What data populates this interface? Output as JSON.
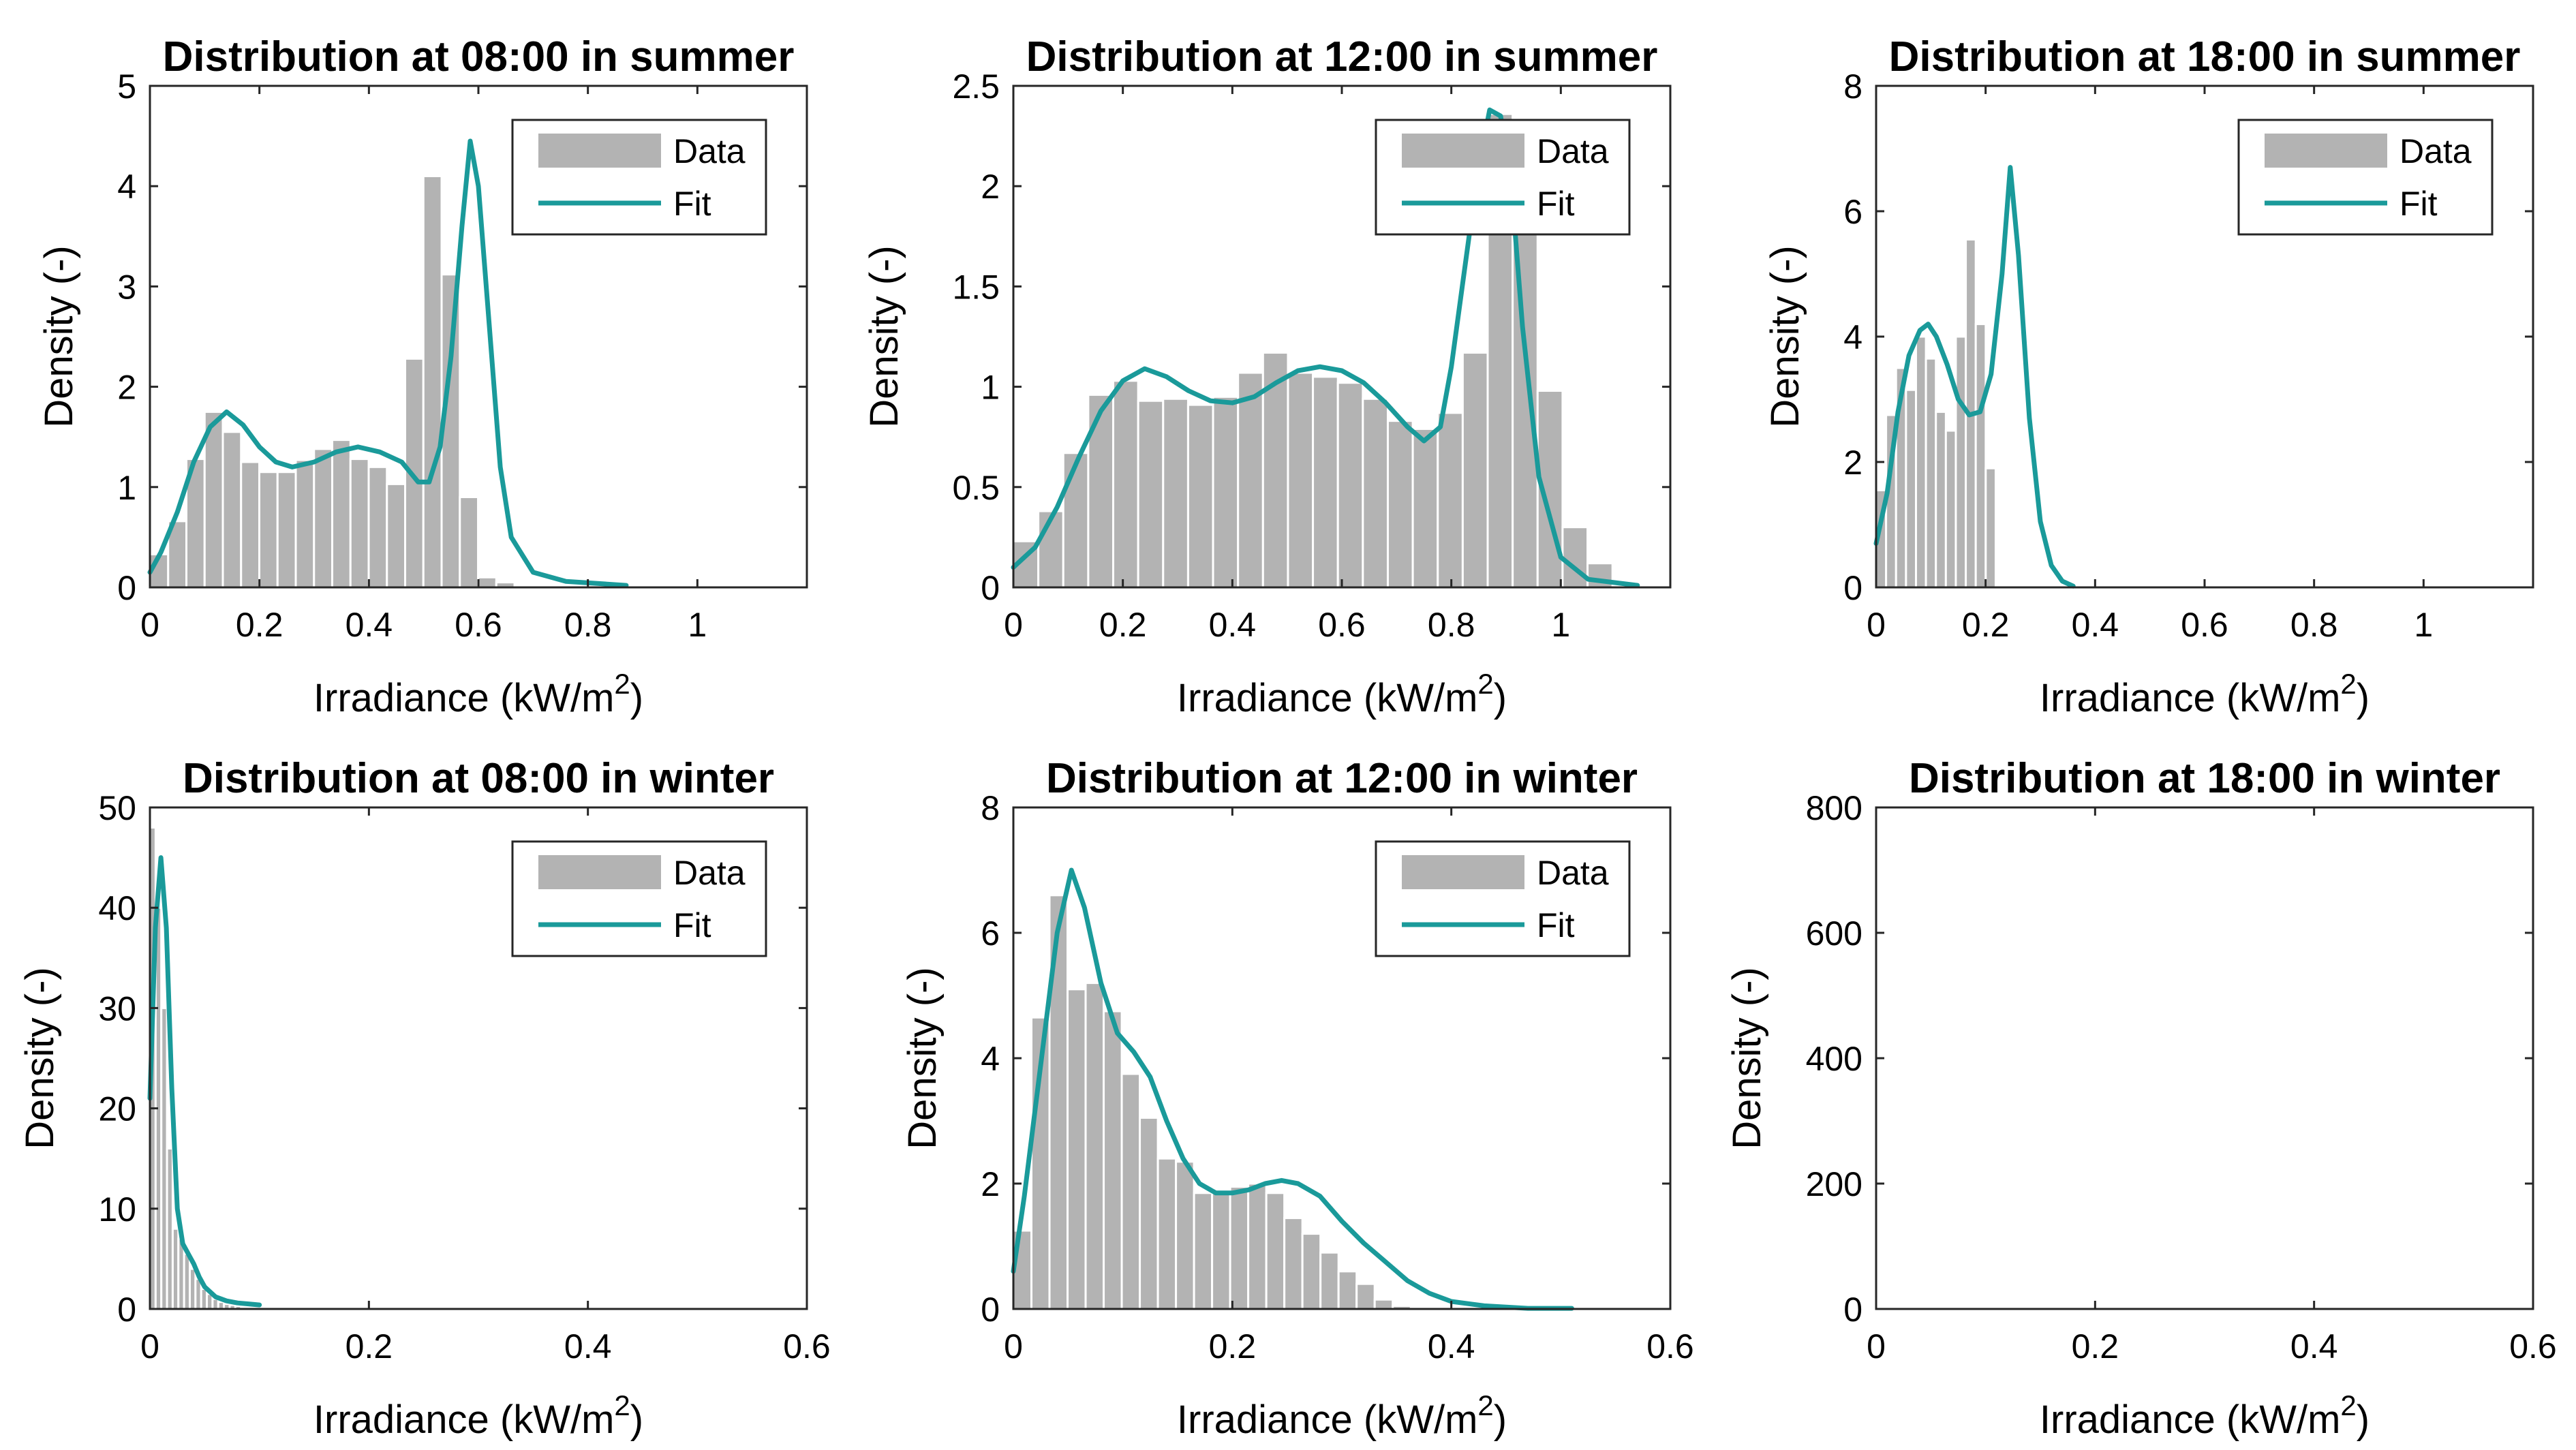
{
  "colors": {
    "bar": "#b3b3b3",
    "fit": "#1a9a9a",
    "axis": "#262626"
  },
  "legend": {
    "data_label": "Data",
    "fit_label": "Fit"
  },
  "chart_data": [
    {
      "type": "bar",
      "title": "Distribution at 08:00 in summer",
      "xlabel": "Irradiance (kW/m",
      "xlabel_sup": "2",
      "xlabel_close": ")",
      "ylabel": "Density (-)",
      "xlim": [
        0,
        1.2
      ],
      "ylim": [
        0,
        5
      ],
      "xticks": [
        0,
        0.2,
        0.4,
        0.6,
        0.8,
        1
      ],
      "xtick_labels": [
        "0",
        "0.2",
        "0.4",
        "0.6",
        "0.8",
        "1"
      ],
      "yticks": [
        0,
        1,
        2,
        3,
        4,
        5
      ],
      "ytick_labels": [
        "0",
        "1",
        "2",
        "3",
        "4",
        "5"
      ],
      "legend": true,
      "bin_start": 0,
      "bin_width": 0.0333,
      "bars": [
        0.33,
        0.66,
        1.28,
        1.75,
        1.55,
        1.25,
        1.15,
        1.15,
        1.27,
        1.38,
        1.47,
        1.28,
        1.2,
        1.03,
        2.28,
        4.1,
        3.12,
        0.9,
        0.1,
        0.05
      ],
      "fit": [
        [
          0,
          0.15
        ],
        [
          0.02,
          0.35
        ],
        [
          0.05,
          0.75
        ],
        [
          0.08,
          1.25
        ],
        [
          0.11,
          1.6
        ],
        [
          0.14,
          1.75
        ],
        [
          0.17,
          1.62
        ],
        [
          0.2,
          1.4
        ],
        [
          0.23,
          1.25
        ],
        [
          0.26,
          1.2
        ],
        [
          0.3,
          1.25
        ],
        [
          0.34,
          1.35
        ],
        [
          0.38,
          1.4
        ],
        [
          0.42,
          1.35
        ],
        [
          0.46,
          1.25
        ],
        [
          0.49,
          1.05
        ],
        [
          0.51,
          1.05
        ],
        [
          0.53,
          1.4
        ],
        [
          0.55,
          2.3
        ],
        [
          0.57,
          3.6
        ],
        [
          0.585,
          4.45
        ],
        [
          0.6,
          4.0
        ],
        [
          0.62,
          2.6
        ],
        [
          0.64,
          1.2
        ],
        [
          0.66,
          0.5
        ],
        [
          0.7,
          0.15
        ],
        [
          0.76,
          0.06
        ],
        [
          0.87,
          0.02
        ]
      ]
    },
    {
      "type": "bar",
      "title": "Distribution at 12:00 in summer",
      "xlabel": "Irradiance (kW/m",
      "xlabel_sup": "2",
      "xlabel_close": ")",
      "ylabel": "Density (-)",
      "xlim": [
        0,
        1.2
      ],
      "ylim": [
        0,
        2.5
      ],
      "xticks": [
        0,
        0.2,
        0.4,
        0.6,
        0.8,
        1
      ],
      "xtick_labels": [
        "0",
        "0.2",
        "0.4",
        "0.6",
        "0.8",
        "1"
      ],
      "yticks": [
        0,
        0.5,
        1,
        1.5,
        2,
        2.5
      ],
      "ytick_labels": [
        "0",
        "0.5",
        "1",
        "1.5",
        "2",
        "2.5"
      ],
      "legend": true,
      "bin_start": 0,
      "bin_width": 0.0456,
      "bars": [
        0.23,
        0.38,
        0.67,
        0.96,
        1.03,
        0.93,
        0.94,
        0.91,
        0.95,
        1.07,
        1.17,
        1.07,
        1.05,
        1.02,
        0.94,
        0.83,
        0.79,
        0.87,
        1.17,
        2.36,
        2.19,
        0.98,
        0.3,
        0.12
      ],
      "fit": [
        [
          0,
          0.1
        ],
        [
          0.04,
          0.2
        ],
        [
          0.08,
          0.4
        ],
        [
          0.12,
          0.65
        ],
        [
          0.16,
          0.88
        ],
        [
          0.2,
          1.03
        ],
        [
          0.24,
          1.09
        ],
        [
          0.28,
          1.05
        ],
        [
          0.32,
          0.98
        ],
        [
          0.36,
          0.93
        ],
        [
          0.4,
          0.92
        ],
        [
          0.44,
          0.95
        ],
        [
          0.48,
          1.02
        ],
        [
          0.52,
          1.08
        ],
        [
          0.56,
          1.1
        ],
        [
          0.6,
          1.08
        ],
        [
          0.64,
          1.02
        ],
        [
          0.68,
          0.92
        ],
        [
          0.72,
          0.8
        ],
        [
          0.75,
          0.73
        ],
        [
          0.78,
          0.8
        ],
        [
          0.8,
          1.1
        ],
        [
          0.82,
          1.5
        ],
        [
          0.85,
          2.1
        ],
        [
          0.87,
          2.38
        ],
        [
          0.89,
          2.35
        ],
        [
          0.91,
          2.0
        ],
        [
          0.93,
          1.3
        ],
        [
          0.96,
          0.55
        ],
        [
          1.0,
          0.15
        ],
        [
          1.05,
          0.04
        ],
        [
          1.14,
          0.01
        ]
      ]
    },
    {
      "type": "bar",
      "title": "Distribution at 18:00 in summer",
      "xlabel": "Irradiance (kW/m",
      "xlabel_sup": "2",
      "xlabel_close": ")",
      "ylabel": "Density (-)",
      "xlim": [
        0,
        1.2
      ],
      "ylim": [
        0,
        8
      ],
      "xticks": [
        0,
        0.2,
        0.4,
        0.6,
        0.8,
        1
      ],
      "xtick_labels": [
        "0",
        "0.2",
        "0.4",
        "0.6",
        "0.8",
        "1"
      ],
      "yticks": [
        0,
        2,
        4,
        6,
        8
      ],
      "ytick_labels": [
        "0",
        "2",
        "4",
        "6",
        "8"
      ],
      "legend": true,
      "bin_start": 0,
      "bin_width": 0.0182,
      "bars": [
        1.55,
        2.75,
        3.5,
        3.15,
        4.0,
        3.65,
        2.8,
        2.5,
        4.0,
        5.55,
        4.2,
        1.9
      ],
      "fit": [
        [
          0,
          0.7
        ],
        [
          0.02,
          1.5
        ],
        [
          0.04,
          2.8
        ],
        [
          0.06,
          3.7
        ],
        [
          0.08,
          4.1
        ],
        [
          0.095,
          4.2
        ],
        [
          0.11,
          4.0
        ],
        [
          0.13,
          3.55
        ],
        [
          0.15,
          3.0
        ],
        [
          0.17,
          2.75
        ],
        [
          0.19,
          2.8
        ],
        [
          0.21,
          3.4
        ],
        [
          0.23,
          5.0
        ],
        [
          0.245,
          6.7
        ],
        [
          0.26,
          5.3
        ],
        [
          0.28,
          2.7
        ],
        [
          0.3,
          1.05
        ],
        [
          0.32,
          0.35
        ],
        [
          0.34,
          0.1
        ],
        [
          0.36,
          0.02
        ]
      ]
    },
    {
      "type": "bar",
      "title": "Distribution at 08:00 in winter",
      "xlabel": "Irradiance (kW/m",
      "xlabel_sup": "2",
      "xlabel_close": ")",
      "ylabel": "Density (-)",
      "xlim": [
        0,
        0.6
      ],
      "ylim": [
        0,
        50
      ],
      "xticks": [
        0,
        0.2,
        0.4,
        0.6
      ],
      "xtick_labels": [
        "0",
        "0.2",
        "0.4",
        "0.6"
      ],
      "yticks": [
        0,
        10,
        20,
        30,
        40,
        50
      ],
      "ytick_labels": [
        "0",
        "10",
        "20",
        "30",
        "40",
        "50"
      ],
      "legend": true,
      "bin_start": 0,
      "bin_width": 0.0052,
      "bars": [
        48,
        40,
        30,
        16,
        8,
        7,
        5.5,
        4,
        3,
        2,
        1.5,
        1,
        0.7,
        0.5,
        0.4,
        0.3
      ],
      "fit": [
        [
          0,
          21
        ],
        [
          0.005,
          38
        ],
        [
          0.01,
          45
        ],
        [
          0.015,
          38
        ],
        [
          0.02,
          22
        ],
        [
          0.025,
          10
        ],
        [
          0.03,
          6.5
        ],
        [
          0.035,
          5.5
        ],
        [
          0.04,
          4.5
        ],
        [
          0.045,
          3.2
        ],
        [
          0.05,
          2.2
        ],
        [
          0.06,
          1.2
        ],
        [
          0.07,
          0.8
        ],
        [
          0.08,
          0.6
        ],
        [
          0.09,
          0.5
        ],
        [
          0.1,
          0.4
        ]
      ]
    },
    {
      "type": "bar",
      "title": "Distribution at 12:00 in winter",
      "xlabel": "Irradiance (kW/m",
      "xlabel_sup": "2",
      "xlabel_close": ")",
      "ylabel": "Density (-)",
      "xlim": [
        0,
        0.6
      ],
      "ylim": [
        0,
        8
      ],
      "xticks": [
        0,
        0.2,
        0.4,
        0.6
      ],
      "xtick_labels": [
        "0",
        "0.2",
        "0.4",
        "0.6"
      ],
      "yticks": [
        0,
        2,
        4,
        6,
        8
      ],
      "ytick_labels": [
        "0",
        "2",
        "4",
        "6",
        "8"
      ],
      "legend": true,
      "bin_start": 0,
      "bin_width": 0.0165,
      "bars": [
        1.25,
        4.65,
        6.6,
        5.1,
        5.2,
        4.75,
        3.75,
        3.05,
        2.4,
        2.35,
        1.85,
        1.85,
        1.95,
        2.0,
        1.85,
        1.45,
        1.2,
        0.9,
        0.6,
        0.4,
        0.15,
        0.05
      ],
      "fit": [
        [
          0,
          0.6
        ],
        [
          0.01,
          1.8
        ],
        [
          0.025,
          3.9
        ],
        [
          0.04,
          6.0
        ],
        [
          0.053,
          7.0
        ],
        [
          0.065,
          6.4
        ],
        [
          0.08,
          5.2
        ],
        [
          0.095,
          4.4
        ],
        [
          0.11,
          4.1
        ],
        [
          0.125,
          3.7
        ],
        [
          0.14,
          3.0
        ],
        [
          0.155,
          2.4
        ],
        [
          0.17,
          2.0
        ],
        [
          0.185,
          1.85
        ],
        [
          0.2,
          1.85
        ],
        [
          0.215,
          1.9
        ],
        [
          0.23,
          2.0
        ],
        [
          0.245,
          2.05
        ],
        [
          0.26,
          2.0
        ],
        [
          0.28,
          1.8
        ],
        [
          0.3,
          1.4
        ],
        [
          0.32,
          1.05
        ],
        [
          0.34,
          0.75
        ],
        [
          0.36,
          0.45
        ],
        [
          0.38,
          0.25
        ],
        [
          0.4,
          0.12
        ],
        [
          0.43,
          0.05
        ],
        [
          0.47,
          0.01
        ],
        [
          0.51,
          0.01
        ]
      ]
    },
    {
      "type": "bar",
      "title": "Distribution at 18:00 in winter",
      "xlabel": "Irradiance (kW/m",
      "xlabel_sup": "2",
      "xlabel_close": ")",
      "ylabel": "Density (-)",
      "xlim": [
        0,
        0.6
      ],
      "ylim": [
        0,
        800
      ],
      "xticks": [
        0,
        0.2,
        0.4,
        0.6
      ],
      "xtick_labels": [
        "0",
        "0.2",
        "0.4",
        "0.6"
      ],
      "yticks": [
        0,
        200,
        400,
        600,
        800
      ],
      "ytick_labels": [
        "0",
        "200",
        "400",
        "600",
        "800"
      ],
      "legend": false,
      "bin_start": 0,
      "bin_width": 0.01,
      "bars": [],
      "fit": []
    }
  ]
}
